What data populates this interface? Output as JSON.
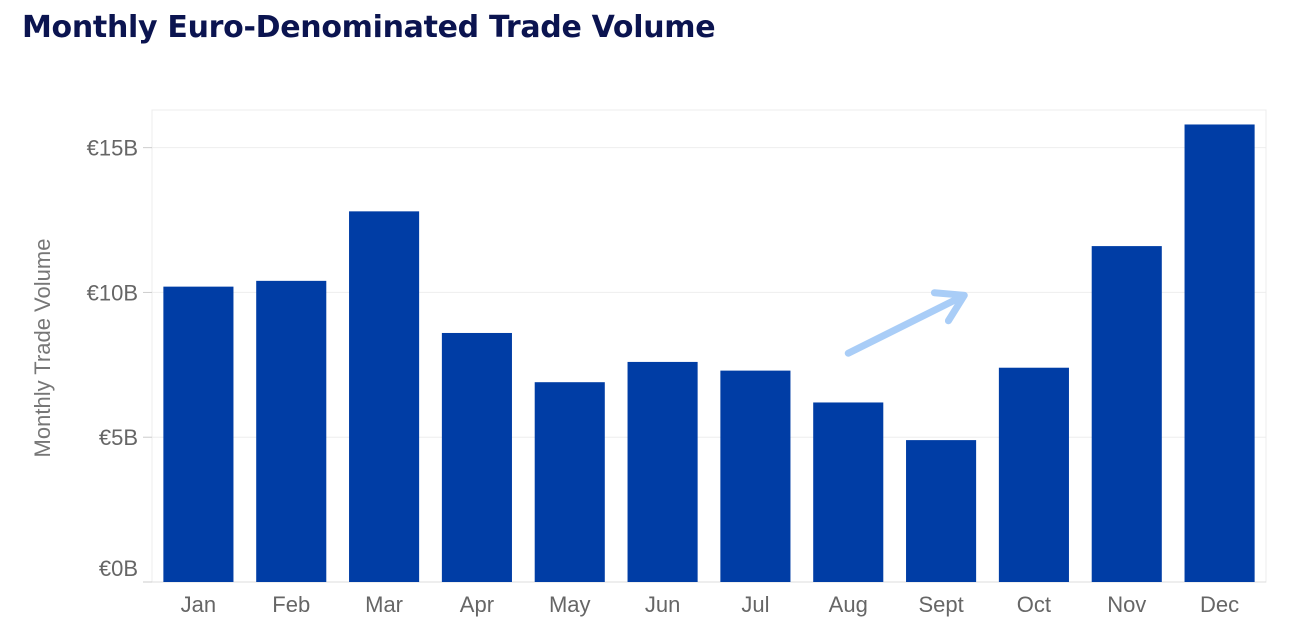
{
  "chart_data": {
    "type": "bar",
    "title": "Monthly Euro-Denominated Trade Volume",
    "xlabel": "",
    "ylabel": "Monthly Trade Volume",
    "categories": [
      "Jan",
      "Feb",
      "Mar",
      "Apr",
      "May",
      "Jun",
      "Jul",
      "Aug",
      "Sept",
      "Oct",
      "Nov",
      "Dec"
    ],
    "values": [
      10.2,
      10.4,
      12.8,
      8.6,
      6.9,
      7.6,
      7.3,
      6.2,
      4.9,
      7.4,
      11.6,
      15.8
    ],
    "ylim": [
      0,
      16.3
    ],
    "yticks": [
      0,
      5,
      10,
      15
    ],
    "ytick_labels": [
      "€0B",
      "€5B",
      "€10B",
      "€15B"
    ],
    "grid": true,
    "bar_color": "#003da5",
    "annotation": {
      "kind": "arrow",
      "color": "#a9cdf7",
      "from": {
        "x": "Aug",
        "y": 7.9
      },
      "to": {
        "x": "Sept",
        "y": 9.9
      }
    }
  }
}
